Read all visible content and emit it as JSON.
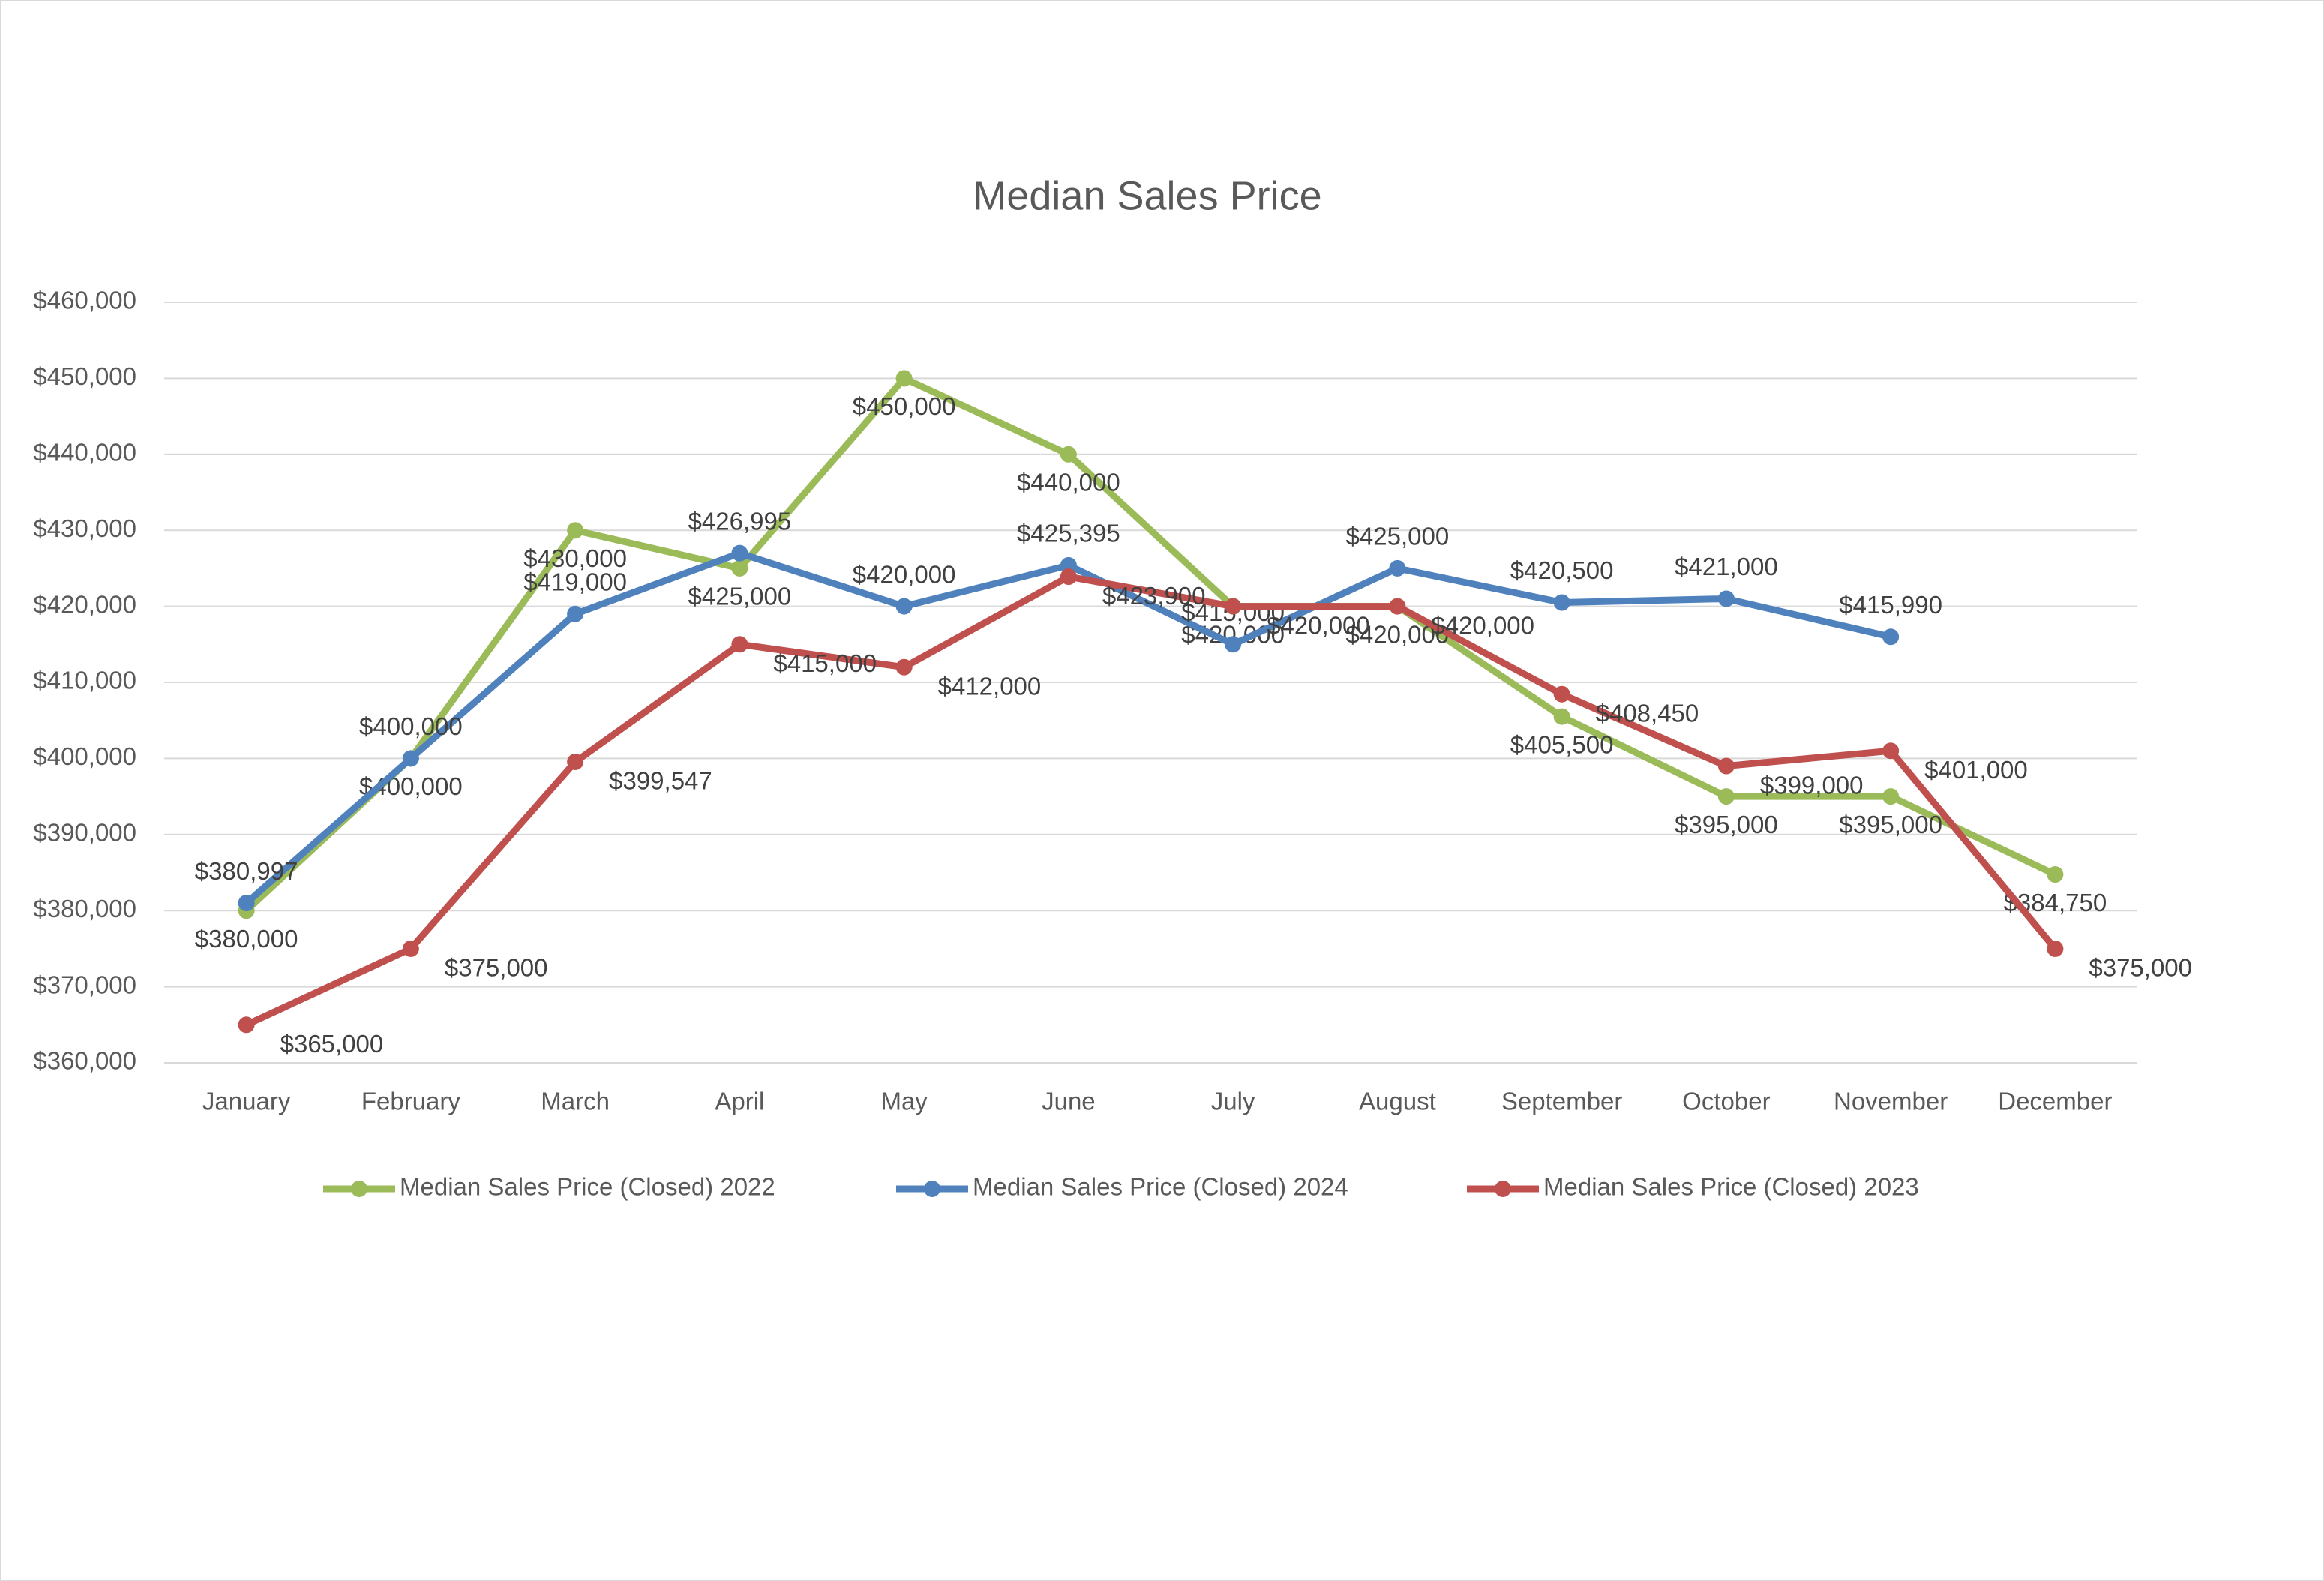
{
  "chart_data": {
    "type": "line",
    "title": "Median Sales Price",
    "categories": [
      "January",
      "February",
      "March",
      "April",
      "May",
      "June",
      "July",
      "August",
      "September",
      "October",
      "November",
      "December"
    ],
    "series": [
      {
        "name": "Median Sales Price (Closed) 2022",
        "color": "#9bbb59",
        "values": [
          380000,
          400000,
          430000,
          425000,
          450000,
          440000,
          420000,
          420000,
          405500,
          395000,
          395000,
          384750
        ],
        "value_labels": [
          "$380,000",
          "$400,000",
          "$430,000",
          "$425,000",
          "$450,000",
          "$440,000",
          "$420,000",
          "$420,000",
          "$405,500",
          "$395,000",
          "$395,000",
          "$384,750"
        ]
      },
      {
        "name": "Median Sales Price (Closed) 2024",
        "color": "#4f81bd",
        "values": [
          380997,
          400000,
          419000,
          426995,
          420000,
          425395,
          415000,
          425000,
          420500,
          421000,
          415990,
          null
        ],
        "value_labels": [
          "$380,997",
          "$400,000",
          "$419,000",
          "$426,995",
          "$420,000",
          "$425,395",
          "$415,000",
          "$425,000",
          "$420,500",
          "$421,000",
          "$415,990",
          null
        ]
      },
      {
        "name": "Median Sales Price (Closed) 2023",
        "color": "#c0504d",
        "values": [
          365000,
          375000,
          399547,
          415000,
          412000,
          423900,
          420000,
          420000,
          408450,
          399000,
          401000,
          375000
        ],
        "value_labels": [
          "$365,000",
          "$375,000",
          "$399,547",
          "$415,000",
          "$412,000",
          "$423,900",
          "$420,000",
          "$420,000",
          "$408,450",
          "$399,000",
          "$401,000",
          "$375,000"
        ]
      }
    ],
    "ylim": [
      360000,
      460000
    ],
    "yticks": [
      {
        "value": 360000,
        "label": "$360,000"
      },
      {
        "value": 370000,
        "label": "$370,000"
      },
      {
        "value": 380000,
        "label": "$380,000"
      },
      {
        "value": 390000,
        "label": "$390,000"
      },
      {
        "value": 400000,
        "label": "$400,000"
      },
      {
        "value": 410000,
        "label": "$410,000"
      },
      {
        "value": 420000,
        "label": "$420,000"
      },
      {
        "value": 430000,
        "label": "$430,000"
      },
      {
        "value": 440000,
        "label": "$440,000"
      },
      {
        "value": 450000,
        "label": "$450,000"
      },
      {
        "value": 460000,
        "label": "$460,000"
      }
    ],
    "grid": true,
    "legend": "bottom"
  }
}
